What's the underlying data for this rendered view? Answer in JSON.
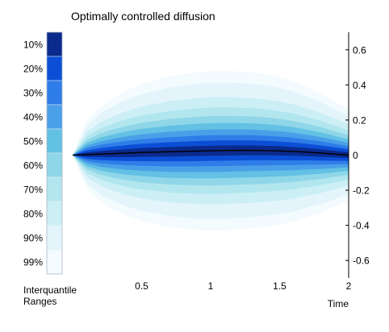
{
  "chart_data": {
    "type": "area",
    "title": "Optimally controlled diffusion",
    "xlabel": "Time",
    "ylabel": "",
    "xlim": [
      0,
      2
    ],
    "ylim": [
      -0.7,
      0.7
    ],
    "xticks": [
      0.5,
      1,
      1.5,
      2
    ],
    "yticks": [
      0.6,
      0.4,
      0.2,
      0,
      -0.2,
      -0.4,
      -0.6
    ],
    "x_tick_labels": [
      "0.5",
      "1",
      "1.5",
      "2"
    ],
    "y_tick_labels": [
      "0.6",
      "0.4",
      "0.2",
      "0",
      "-0.2",
      "-0.4",
      "-0.6"
    ],
    "y_axis_side": "right",
    "x": [
      0,
      0.1,
      0.2,
      0.3,
      0.4,
      0.5,
      0.6,
      0.7,
      0.8,
      0.9,
      1.0,
      1.1,
      1.2,
      1.3,
      1.4,
      1.5,
      1.6,
      1.7,
      1.8,
      1.9,
      2.0
    ],
    "median": [
      0.0,
      0.003,
      0.006,
      0.009,
      0.012,
      0.015,
      0.017,
      0.019,
      0.021,
      0.023,
      0.025,
      0.026,
      0.027,
      0.027,
      0.026,
      0.024,
      0.021,
      0.017,
      0.012,
      0.006,
      0.0
    ],
    "band_half_width_99": [
      0.0,
      0.19,
      0.27,
      0.32,
      0.36,
      0.39,
      0.41,
      0.43,
      0.44,
      0.45,
      0.455,
      0.455,
      0.45,
      0.445,
      0.435,
      0.42,
      0.4,
      0.37,
      0.34,
      0.3,
      0.26
    ],
    "legend": {
      "title": "Interquantile Ranges",
      "placement": "left",
      "levels": [
        {
          "label": "10%",
          "color": "#0a2a8c",
          "width_fraction": 0.063
        },
        {
          "label": "20%",
          "color": "#0c4fd6",
          "width_fraction": 0.127
        },
        {
          "label": "30%",
          "color": "#2f7de8",
          "width_fraction": 0.194
        },
        {
          "label": "40%",
          "color": "#4aa0e8",
          "width_fraction": 0.266
        },
        {
          "label": "50%",
          "color": "#62c1e4",
          "width_fraction": 0.345
        },
        {
          "label": "60%",
          "color": "#8fd6e8",
          "width_fraction": 0.434
        },
        {
          "label": "70%",
          "color": "#b2e6ee",
          "width_fraction": 0.54
        },
        {
          "label": "80%",
          "color": "#cceff6",
          "width_fraction": 0.671
        },
        {
          "label": "90%",
          "color": "#e3f5fb",
          "width_fraction": 0.853
        },
        {
          "label": "99%",
          "color": "#f3fbfe",
          "width_fraction": 1.0
        }
      ]
    },
    "median_color": "#000000",
    "grid": false
  }
}
